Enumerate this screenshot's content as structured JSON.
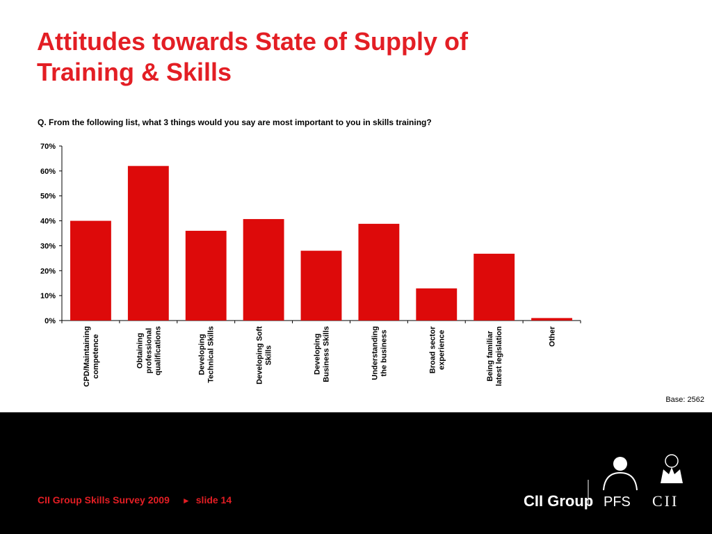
{
  "slide": {
    "title_lines": [
      "Attitudes towards State of Supply of",
      "Training & Skills"
    ],
    "question": "Q. From the following list, what 3 things would you say are most important to you in skills training?",
    "base": "Base: 2562"
  },
  "footer": {
    "survey": "CII Group Skills Survey 2009",
    "slide_label": "slide 14",
    "logos": {
      "cii_group": "CII Group",
      "pfs": "PFS",
      "cii": "CII"
    }
  },
  "colors": {
    "title": "#e31e24",
    "bar": "#dd0a0a",
    "footer_bg": "#000000",
    "footer_text": "#e31e24"
  },
  "chart_data": {
    "type": "bar",
    "categories": [
      [
        "CPD/Maintaining",
        "competence"
      ],
      [
        "Obtaining",
        "professional",
        "qualifications"
      ],
      [
        "Developing",
        "Technical Skills"
      ],
      [
        "Developing Soft",
        "Skills"
      ],
      [
        "Developing",
        "Business Skills"
      ],
      [
        "Understanding",
        "the business"
      ],
      [
        "Broad sector",
        "experience"
      ],
      [
        "Being familiar",
        "latest legislation"
      ],
      [
        "Other"
      ]
    ],
    "values": [
      40,
      62,
      36,
      40.7,
      28,
      38.8,
      12.9,
      26.8,
      1
    ],
    "yticks": [
      "0%",
      "10%",
      "20%",
      "30%",
      "40%",
      "50%",
      "60%",
      "70%"
    ],
    "ylim": [
      0,
      70
    ],
    "grid": false,
    "legend": "none"
  }
}
